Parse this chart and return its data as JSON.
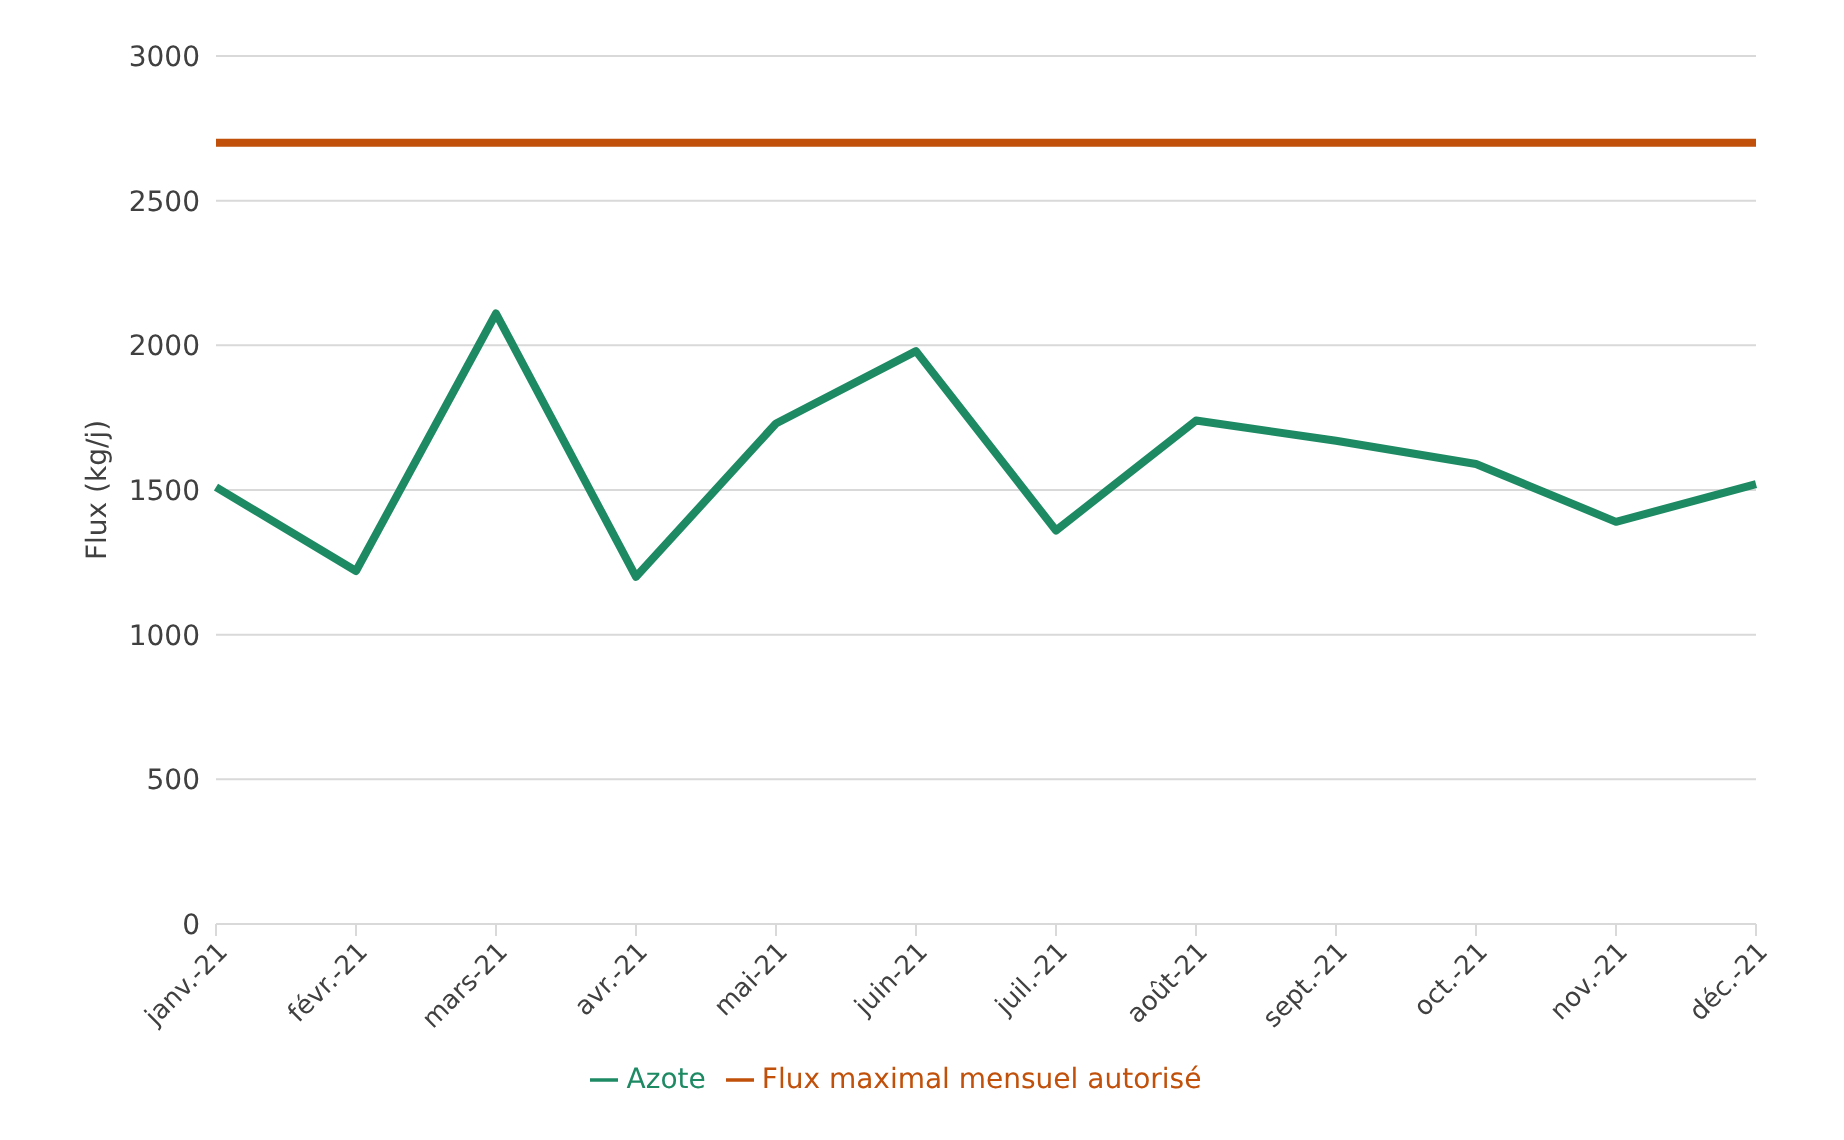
{
  "chart_data": {
    "type": "line",
    "ylabel": "Flux (kg/j)",
    "categories": [
      "janv.-21",
      "févr.-21",
      "mars-21",
      "avr.-21",
      "mai-21",
      "juin-21",
      "juil.-21",
      "août-21",
      "sept.-21",
      "oct.-21",
      "nov.-21",
      "déc.-21"
    ],
    "series": [
      {
        "name": "Azote",
        "color": "#1e8a64",
        "values": [
          1510,
          1220,
          2110,
          1200,
          1730,
          1980,
          1360,
          1740,
          1670,
          1590,
          1390,
          1520
        ]
      },
      {
        "name": "Flux maximal mensuel autorisé",
        "color": "#c0500a",
        "values": [
          2700,
          2700,
          2700,
          2700,
          2700,
          2700,
          2700,
          2700,
          2700,
          2700,
          2700,
          2700
        ]
      }
    ],
    "ylim": [
      0,
      3000
    ],
    "yticks": [
      0,
      500,
      1000,
      1500,
      2000,
      2500,
      3000
    ],
    "grid": "y",
    "legend": "bottom",
    "marker": "none",
    "line_style": "solid"
  }
}
